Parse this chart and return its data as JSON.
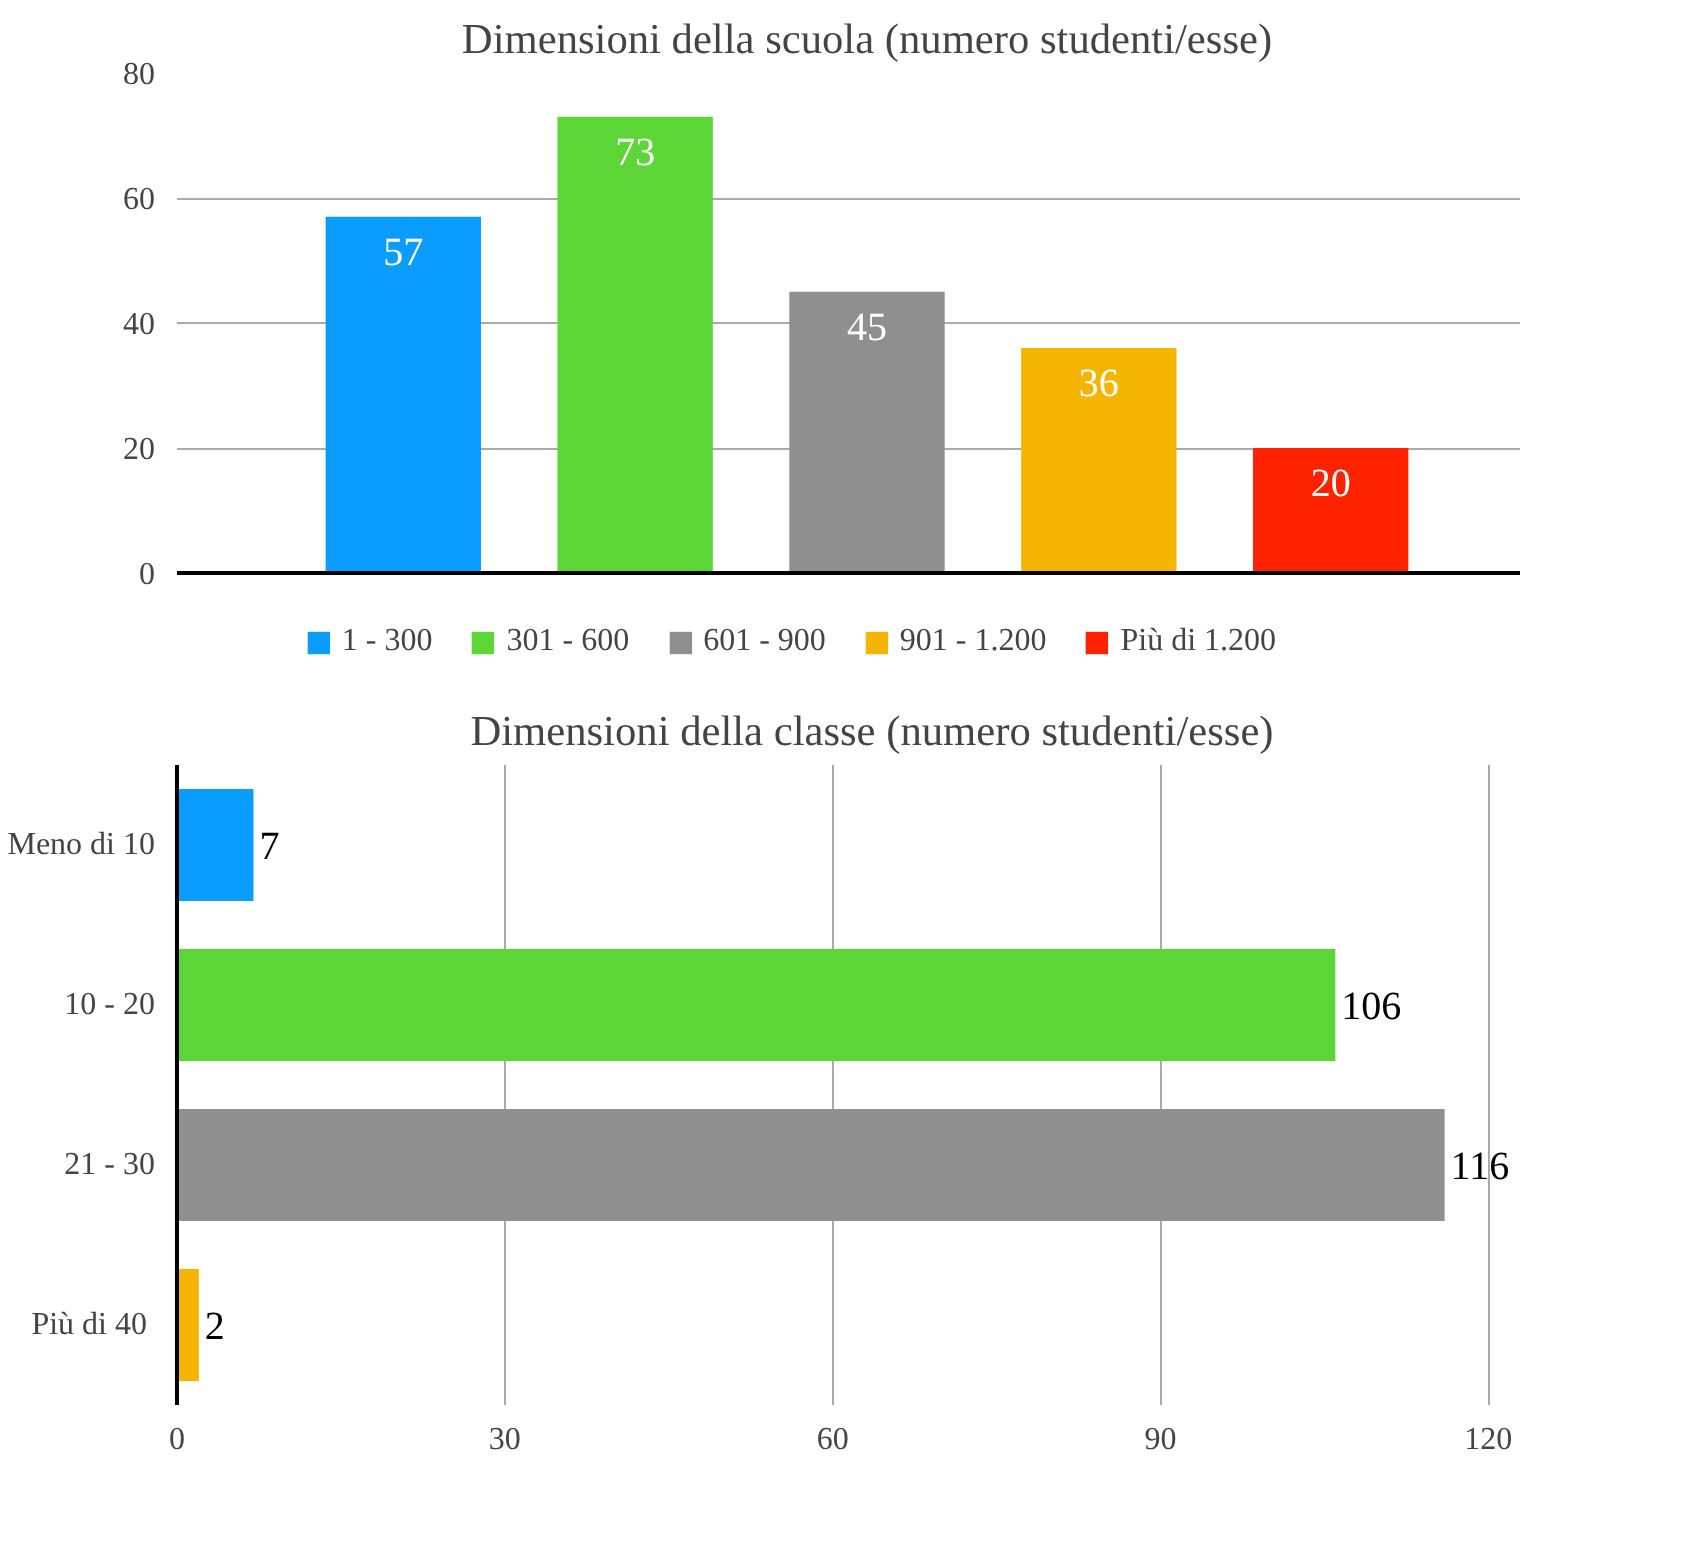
{
  "chart_data": [
    {
      "type": "bar",
      "title": "Dimensioni della scuola (numero studenti/esse)",
      "categories": [
        null
      ],
      "series": [
        {
          "name": "1 - 300",
          "color": "#0a9dff",
          "values": [
            57
          ]
        },
        {
          "name": "301 - 600",
          "color": "#5cd637",
          "values": [
            73
          ]
        },
        {
          "name": "601 - 900",
          "color": "#8f8f8f",
          "values": [
            45
          ]
        },
        {
          "name": "901 - 1.200",
          "color": "#f5b400",
          "values": [
            36
          ]
        },
        {
          "name": "Più di 1.200",
          "color": "#ff2200",
          "values": [
            20
          ]
        }
      ],
      "ylim": [
        0,
        80
      ],
      "yticks": [
        0,
        20,
        40,
        60,
        80
      ],
      "grid": "y",
      "legend": "bottom",
      "tick_labels": "y",
      "data_labels": true
    },
    {
      "type": "bar",
      "orientation": "horizontal",
      "title": "Dimensioni della classe (numero studenti/esse)",
      "categories": [
        "Meno di 10",
        "10 - 20",
        "21 - 30",
        "Più di  40"
      ],
      "values": [
        7,
        106,
        116,
        2
      ],
      "colors": [
        "#0a9dff",
        "#5cd637",
        "#8f8f8f",
        "#f5b400"
      ],
      "xlim": [
        0,
        120
      ],
      "xticks": [
        0,
        30,
        60,
        90,
        120
      ],
      "grid": "x",
      "data_labels": true
    }
  ]
}
